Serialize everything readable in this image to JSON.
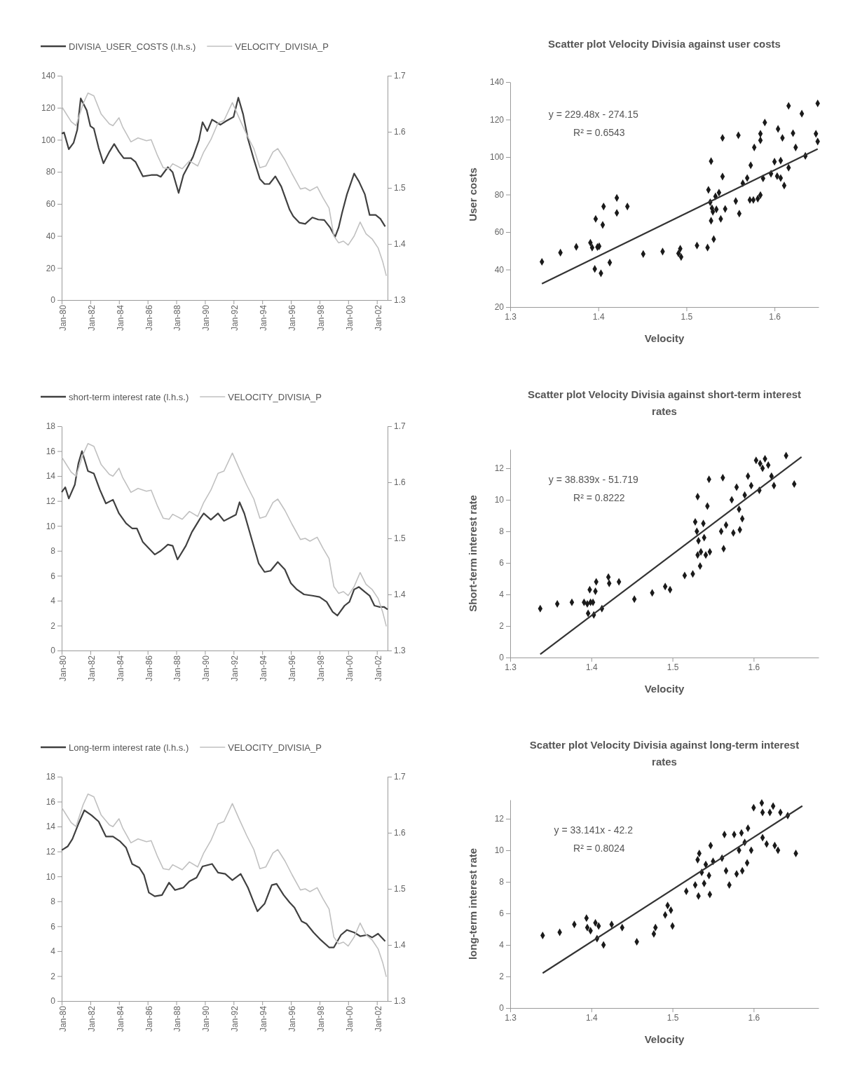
{
  "chart_data": [
    {
      "type": "line",
      "legend": "top",
      "xlim": [
        "1980-01",
        "2002-10"
      ],
      "xticks": [
        {
          "value": "1980-01",
          "label": "Jan-80"
        },
        {
          "value": "1982-01",
          "label": "Jan-82"
        },
        {
          "value": "1984-01",
          "label": "Jan-84"
        },
        {
          "value": "1986-01",
          "label": "Jan-86"
        },
        {
          "value": "1988-01",
          "label": "Jan-88"
        },
        {
          "value": "1990-01",
          "label": "Jan-90"
        },
        {
          "value": "1992-01",
          "label": "Jan-92"
        },
        {
          "value": "1994-01",
          "label": "Jan-94"
        },
        {
          "value": "1996-01",
          "label": "Jan-96"
        },
        {
          "value": "1998-01",
          "label": "Jan-98"
        },
        {
          "value": "2000-01",
          "label": "Jan-00"
        },
        {
          "value": "2002-01",
          "label": "Jan-02"
        }
      ],
      "ylim": [
        0,
        140
      ],
      "yticks": [
        0,
        20,
        40,
        60,
        80,
        100,
        120,
        140
      ],
      "y2lim": [
        1.3,
        1.7
      ],
      "y2ticks": [
        1.3,
        1.4,
        1.5,
        1.6,
        1.7
      ],
      "series": [
        {
          "name": "DIVISIA_USER_COSTS (l.h.s.)",
          "color": "#404040",
          "x": [
            "1980-01",
            "1980-03",
            "1980-07",
            "1980-11",
            "1981-02",
            "1981-05",
            "1981-10",
            "1982-01",
            "1982-04",
            "1982-08",
            "1982-12",
            "1983-05",
            "1983-09",
            "1984-01",
            "1984-05",
            "1984-11",
            "1985-03",
            "1985-09",
            "1986-04",
            "1986-09",
            "1986-12",
            "1987-06",
            "1987-10",
            "1988-03",
            "1988-07",
            "1988-11",
            "1989-03",
            "1989-08",
            "1989-11",
            "1990-03",
            "1990-07",
            "1991-02",
            "1991-07",
            "1992-01",
            "1992-05",
            "1992-09",
            "1993-01",
            "1993-06",
            "1993-11",
            "1994-03",
            "1994-07",
            "1994-12",
            "1995-05",
            "1995-12",
            "1996-03",
            "1996-08",
            "1997-01",
            "1997-07",
            "1997-12",
            "1998-05",
            "1998-10",
            "1999-02",
            "1999-05",
            "1999-08",
            "1999-12",
            "2000-06",
            "2000-10",
            "2001-03",
            "2001-07",
            "2001-12",
            "2002-04",
            "2002-08"
          ],
          "values": [
            103.8,
            104.6,
            94.1,
            98.2,
            106.2,
            125.8,
            118.3,
            108.6,
            107.0,
            94.9,
            85.3,
            92.5,
            97.4,
            92.5,
            88.5,
            88.5,
            86.1,
            77.2,
            78.0,
            78.0,
            76.9,
            82.9,
            79.7,
            66.8,
            78.0,
            83.7,
            89.3,
            99.8,
            111.0,
            105.4,
            112.6,
            109.4,
            111.8,
            114.3,
            126.3,
            115.9,
            100.6,
            87.7,
            75.6,
            72.4,
            72.4,
            77.2,
            70.8,
            56.3,
            52.3,
            48.3,
            47.5,
            51.5,
            50.2,
            49.9,
            45.1,
            39.4,
            45.1,
            54.7,
            66.0,
            78.9,
            74.0,
            66.0,
            53.1,
            53.1,
            50.7,
            45.9
          ]
        },
        {
          "name": "VELOCITY_DIVISIA_P",
          "color": "#c0c0c0",
          "axis": "y2",
          "x": [
            "1980-01",
            "1980-09",
            "1981-01",
            "1981-07",
            "1981-11",
            "1982-04",
            "1982-10",
            "1983-05",
            "1983-08",
            "1984-01",
            "1984-04",
            "1984-11",
            "1985-05",
            "1985-12",
            "1986-04",
            "1986-09",
            "1987-02",
            "1987-07",
            "1987-10",
            "1988-06",
            "1988-12",
            "1989-07",
            "1989-12",
            "1990-06",
            "1990-12",
            "1991-05",
            "1991-12",
            "1992-06",
            "1992-12",
            "1993-06",
            "1993-11",
            "1994-04",
            "1994-10",
            "1995-02",
            "1995-08",
            "1996-02",
            "1996-09",
            "1997-01",
            "1997-05",
            "1997-11",
            "1998-04",
            "1998-09",
            "1999-01",
            "1999-05",
            "1999-09",
            "2000-01",
            "2000-06",
            "2000-11",
            "2001-04",
            "2001-09",
            "2002-02",
            "2002-06",
            "2002-09"
          ],
          "values": [
            1.645,
            1.618,
            1.611,
            1.65,
            1.669,
            1.664,
            1.632,
            1.614,
            1.611,
            1.625,
            1.609,
            1.582,
            1.589,
            1.584,
            1.586,
            1.559,
            1.536,
            1.534,
            1.543,
            1.534,
            1.548,
            1.539,
            1.564,
            1.586,
            1.616,
            1.62,
            1.652,
            1.623,
            1.595,
            1.57,
            1.536,
            1.539,
            1.564,
            1.57,
            1.55,
            1.525,
            1.498,
            1.5,
            1.495,
            1.502,
            1.482,
            1.464,
            1.414,
            1.402,
            1.405,
            1.398,
            1.414,
            1.439,
            1.418,
            1.409,
            1.393,
            1.368,
            1.343
          ]
        }
      ]
    },
    {
      "type": "scatter",
      "title": "Scatter plot Velocity Divisia against user costs",
      "xlabel": "Velocity",
      "ylabel": "User costs",
      "marker": "diamond",
      "xlim": [
        1.3,
        1.65
      ],
      "xticks": [
        1.3,
        1.4,
        1.5,
        1.6
      ],
      "ylim": [
        20,
        140
      ],
      "yticks": [
        20,
        40,
        60,
        80,
        100,
        120,
        140
      ],
      "annotations": [
        "y = 229.48x - 274.15",
        "R² = 0.6543"
      ],
      "series": [
        {
          "color": "#1a1a1a",
          "x": [
            1.336,
            1.357,
            1.375,
            1.391,
            1.393,
            1.399,
            1.401,
            1.397,
            1.405,
            1.406,
            1.421,
            1.421,
            1.433,
            1.396,
            1.403,
            1.413,
            1.451,
            1.473,
            1.491,
            1.494,
            1.493,
            1.512,
            1.524,
            1.531,
            1.525,
            1.528,
            1.527,
            1.529,
            1.53,
            1.528,
            1.533,
            1.537,
            1.539,
            1.534,
            1.541,
            1.541,
            1.544,
            1.559,
            1.556,
            1.56,
            1.564,
            1.569,
            1.573,
            1.576,
            1.581,
            1.577,
            1.584,
            1.584,
            1.589,
            1.587,
            1.584,
            1.596,
            1.6,
            1.604,
            1.609,
            1.603,
            1.607,
            1.611,
            1.616,
            1.616,
            1.621,
            1.624,
            1.631,
            1.635,
            1.647,
            1.649,
            1.649,
            1.607,
            1.572
          ],
          "values": [
            44.1,
            49.0,
            52.1,
            54.3,
            51.7,
            52.0,
            52.4,
            67.0,
            63.8,
            73.6,
            78.2,
            70.2,
            73.6,
            40.3,
            38.0,
            43.7,
            48.3,
            49.6,
            48.6,
            46.7,
            51.1,
            52.8,
            51.7,
            56.2,
            82.5,
            97.8,
            75.9,
            72.7,
            70.8,
            66.0,
            79.0,
            81.0,
            67.0,
            72.1,
            89.6,
            110.2,
            72.3,
            111.6,
            76.5,
            69.8,
            86.0,
            88.8,
            95.6,
            77.1,
            77.8,
            105.1,
            108.9,
            112.4,
            118.4,
            88.6,
            79.7,
            91.1,
            97.5,
            115.0,
            110.2,
            89.8,
            98.1,
            84.8,
            127.3,
            94.3,
            112.7,
            105.1,
            123.1,
            100.6,
            112.4,
            128.6,
            108.3,
            88.8,
            77.1
          ]
        },
        {
          "type": "line",
          "marker": "none",
          "color": "#333333",
          "x": [
            1.336,
            1.649
          ],
          "values": [
            32.4,
            104.3
          ]
        }
      ]
    },
    {
      "type": "line",
      "legend": "top",
      "xlim": [
        "1980-01",
        "2002-10"
      ],
      "xticks": [
        {
          "value": "1980-01",
          "label": "Jan-80"
        },
        {
          "value": "1982-01",
          "label": "Jan-82"
        },
        {
          "value": "1984-01",
          "label": "Jan-84"
        },
        {
          "value": "1986-01",
          "label": "Jan-86"
        },
        {
          "value": "1988-01",
          "label": "Jan-88"
        },
        {
          "value": "1990-01",
          "label": "Jan-90"
        },
        {
          "value": "1992-01",
          "label": "Jan-92"
        },
        {
          "value": "1994-01",
          "label": "Jan-94"
        },
        {
          "value": "1996-01",
          "label": "Jan-96"
        },
        {
          "value": "1998-01",
          "label": "Jan-98"
        },
        {
          "value": "2000-01",
          "label": "Jan-00"
        },
        {
          "value": "2002-01",
          "label": "Jan-02"
        }
      ],
      "ylim": [
        0,
        18
      ],
      "yticks": [
        0,
        2,
        4,
        6,
        8,
        10,
        12,
        14,
        16,
        18
      ],
      "y2lim": [
        1.3,
        1.7
      ],
      "y2ticks": [
        1.3,
        1.4,
        1.5,
        1.6,
        1.7
      ],
      "series": [
        {
          "name": "short-term interest rate (l.h.s.)",
          "color": "#404040",
          "x": [
            "1980-01",
            "1980-04",
            "1980-07",
            "1980-12",
            "1981-03",
            "1981-06",
            "1981-11",
            "1982-04",
            "1982-09",
            "1983-02",
            "1983-08",
            "1984-01",
            "1984-07",
            "1984-12",
            "1985-04",
            "1985-09",
            "1986-02",
            "1986-07",
            "1986-12",
            "1987-06",
            "1987-10",
            "1988-02",
            "1988-09",
            "1989-02",
            "1989-09",
            "1989-12",
            "1990-06",
            "1990-12",
            "1991-05",
            "1991-11",
            "1992-03",
            "1992-06",
            "1992-10",
            "1993-04",
            "1993-10",
            "1994-03",
            "1994-08",
            "1995-02",
            "1995-08",
            "1996-01",
            "1996-06",
            "1996-12",
            "1997-07",
            "1998-01",
            "1998-07",
            "1998-12",
            "1999-04",
            "1999-10",
            "2000-02",
            "2000-06",
            "2000-10",
            "2001-03",
            "2001-07",
            "2001-11",
            "2002-03",
            "2002-07",
            "2002-10"
          ],
          "values": [
            12.7,
            13.1,
            12.2,
            13.3,
            15.0,
            16.0,
            14.4,
            14.2,
            12.9,
            11.8,
            12.1,
            11.0,
            10.2,
            9.8,
            9.8,
            8.7,
            8.2,
            7.7,
            8.0,
            8.5,
            8.4,
            7.3,
            8.4,
            9.5,
            10.6,
            11.0,
            10.5,
            11.0,
            10.4,
            10.7,
            10.9,
            11.9,
            11.0,
            9.0,
            7.0,
            6.3,
            6.4,
            7.1,
            6.5,
            5.4,
            4.9,
            4.5,
            4.4,
            4.3,
            3.9,
            3.1,
            2.8,
            3.6,
            3.9,
            4.9,
            5.1,
            4.7,
            4.4,
            3.6,
            3.5,
            3.5,
            3.3
          ]
        },
        {
          "name": "VELOCITY_DIVISIA_P",
          "color": "#c0c0c0",
          "axis": "y2",
          "x": [
            "1980-01",
            "1980-09",
            "1981-01",
            "1981-07",
            "1981-11",
            "1982-04",
            "1982-10",
            "1983-05",
            "1983-08",
            "1984-01",
            "1984-04",
            "1984-11",
            "1985-05",
            "1985-12",
            "1986-04",
            "1986-09",
            "1987-02",
            "1987-07",
            "1987-10",
            "1988-06",
            "1988-12",
            "1989-07",
            "1989-12",
            "1990-06",
            "1990-12",
            "1991-05",
            "1991-12",
            "1992-06",
            "1992-12",
            "1993-06",
            "1993-11",
            "1994-04",
            "1994-10",
            "1995-02",
            "1995-08",
            "1996-02",
            "1996-09",
            "1997-01",
            "1997-05",
            "1997-11",
            "1998-04",
            "1998-09",
            "1999-01",
            "1999-05",
            "1999-09",
            "2000-01",
            "2000-06",
            "2000-11",
            "2001-04",
            "2001-09",
            "2002-02",
            "2002-06",
            "2002-09"
          ],
          "values": [
            1.645,
            1.618,
            1.611,
            1.65,
            1.669,
            1.664,
            1.632,
            1.614,
            1.611,
            1.625,
            1.609,
            1.582,
            1.589,
            1.584,
            1.586,
            1.559,
            1.536,
            1.534,
            1.543,
            1.534,
            1.548,
            1.539,
            1.564,
            1.586,
            1.616,
            1.62,
            1.652,
            1.623,
            1.595,
            1.57,
            1.536,
            1.539,
            1.564,
            1.57,
            1.55,
            1.525,
            1.498,
            1.5,
            1.495,
            1.502,
            1.482,
            1.464,
            1.414,
            1.402,
            1.405,
            1.398,
            1.414,
            1.439,
            1.418,
            1.409,
            1.393,
            1.368,
            1.343
          ]
        }
      ]
    },
    {
      "type": "scatter",
      "title": "Scatter plot Velocity Divisia against short-term interest rates",
      "xlabel": "Velocity",
      "ylabel": "Short-term interest rate",
      "marker": "diamond",
      "xlim": [
        1.3,
        1.68
      ],
      "xticks": [
        1.3,
        1.4,
        1.5,
        1.6
      ],
      "ylim": [
        0,
        13.2
      ],
      "yticks": [
        0,
        2,
        4,
        6,
        8,
        10,
        12
      ],
      "annotations": [
        "y = 38.839x - 51.719",
        "R² = 0.8222"
      ],
      "series": [
        {
          "color": "#1a1a1a",
          "x": [
            1.337,
            1.358,
            1.376,
            1.391,
            1.395,
            1.399,
            1.402,
            1.396,
            1.403,
            1.413,
            1.398,
            1.406,
            1.405,
            1.421,
            1.422,
            1.434,
            1.453,
            1.475,
            1.491,
            1.497,
            1.515,
            1.525,
            1.534,
            1.531,
            1.528,
            1.53,
            1.532,
            1.531,
            1.535,
            1.538,
            1.539,
            1.541,
            1.545,
            1.543,
            1.546,
            1.562,
            1.56,
            1.563,
            1.566,
            1.573,
            1.575,
            1.579,
            1.582,
            1.583,
            1.586,
            1.589,
            1.593,
            1.597,
            1.603,
            1.607,
            1.611,
            1.614,
            1.618,
            1.622,
            1.625,
            1.64,
            1.65,
            1.608
          ],
          "values": [
            3.1,
            3.4,
            3.5,
            3.5,
            3.4,
            3.5,
            3.5,
            2.8,
            2.7,
            3.1,
            4.3,
            4.8,
            4.2,
            5.1,
            4.7,
            4.8,
            3.7,
            4.1,
            4.5,
            4.3,
            5.2,
            5.3,
            5.8,
            10.2,
            8.6,
            8.0,
            7.4,
            6.5,
            6.7,
            8.5,
            7.6,
            6.5,
            11.3,
            9.6,
            6.7,
            11.4,
            8.0,
            6.9,
            8.4,
            10.0,
            7.9,
            10.8,
            9.4,
            8.1,
            8.8,
            10.3,
            11.5,
            10.9,
            12.5,
            10.6,
            12.0,
            12.6,
            12.2,
            11.5,
            10.9,
            12.8,
            11.0,
            12.3
          ]
        },
        {
          "type": "line",
          "marker": "none",
          "color": "#333333",
          "x": [
            1.337,
            1.659
          ],
          "values": [
            0.21,
            12.72
          ]
        }
      ]
    },
    {
      "type": "line",
      "legend": "top",
      "xlim": [
        "1980-01",
        "2002-10"
      ],
      "xticks": [
        {
          "value": "1980-01",
          "label": "Jan-80"
        },
        {
          "value": "1982-01",
          "label": "Jan-82"
        },
        {
          "value": "1984-01",
          "label": "Jan-84"
        },
        {
          "value": "1986-01",
          "label": "Jan-86"
        },
        {
          "value": "1988-01",
          "label": "Jan-88"
        },
        {
          "value": "1990-01",
          "label": "Jan-90"
        },
        {
          "value": "1992-01",
          "label": "Jan-92"
        },
        {
          "value": "1994-01",
          "label": "Jan-94"
        },
        {
          "value": "1996-01",
          "label": "Jan-96"
        },
        {
          "value": "1998-01",
          "label": "Jan-98"
        },
        {
          "value": "2000-01",
          "label": "Jan-00"
        },
        {
          "value": "2002-01",
          "label": "Jan-02"
        }
      ],
      "ylim": [
        0,
        18
      ],
      "yticks": [
        0,
        2,
        4,
        6,
        8,
        10,
        12,
        14,
        16,
        18
      ],
      "y2lim": [
        1.3,
        1.7
      ],
      "y2ticks": [
        1.3,
        1.4,
        1.5,
        1.6,
        1.7
      ],
      "series": [
        {
          "name": "Long-term interest rate (l.h.s.)",
          "color": "#404040",
          "x": [
            "1980-01",
            "1980-06",
            "1980-10",
            "1981-03",
            "1981-08",
            "1982-02",
            "1982-08",
            "1983-02",
            "1983-08",
            "1984-02",
            "1984-07",
            "1984-12",
            "1985-06",
            "1985-10",
            "1986-02",
            "1986-07",
            "1987-01",
            "1987-07",
            "1987-12",
            "1988-07",
            "1988-12",
            "1989-06",
            "1989-11",
            "1990-07",
            "1990-12",
            "1991-06",
            "1991-12",
            "1992-07",
            "1993-01",
            "1993-06",
            "1993-09",
            "1994-03",
            "1994-09",
            "1995-01",
            "1995-07",
            "1995-12",
            "1996-04",
            "1996-10",
            "1997-02",
            "1997-08",
            "1998-02",
            "1998-09",
            "1999-01",
            "1999-07",
            "1999-12",
            "2000-06",
            "2000-11",
            "2001-05",
            "2001-09",
            "2002-02",
            "2002-08"
          ],
          "values": [
            12.1,
            12.4,
            13.0,
            14.2,
            15.3,
            14.9,
            14.4,
            13.2,
            13.2,
            12.8,
            12.3,
            11.0,
            10.7,
            10.1,
            8.7,
            8.4,
            8.5,
            9.5,
            8.9,
            9.1,
            9.6,
            9.9,
            10.8,
            11.0,
            10.3,
            10.2,
            9.7,
            10.2,
            9.1,
            7.9,
            7.2,
            7.8,
            9.3,
            9.4,
            8.5,
            7.9,
            7.5,
            6.4,
            6.2,
            5.5,
            4.9,
            4.3,
            4.3,
            5.3,
            5.7,
            5.5,
            5.2,
            5.3,
            5.1,
            5.4,
            4.8
          ]
        },
        {
          "name": "VELOCITY_DIVISIA_P",
          "color": "#c0c0c0",
          "axis": "y2",
          "x": [
            "1980-01",
            "1980-09",
            "1981-01",
            "1981-07",
            "1981-11",
            "1982-04",
            "1982-10",
            "1983-05",
            "1983-08",
            "1984-01",
            "1984-04",
            "1984-11",
            "1985-05",
            "1985-12",
            "1986-04",
            "1986-09",
            "1987-02",
            "1987-07",
            "1987-10",
            "1988-06",
            "1988-12",
            "1989-07",
            "1989-12",
            "1990-06",
            "1990-12",
            "1991-05",
            "1991-12",
            "1992-06",
            "1992-12",
            "1993-06",
            "1993-11",
            "1994-04",
            "1994-10",
            "1995-02",
            "1995-08",
            "1996-02",
            "1996-09",
            "1997-01",
            "1997-05",
            "1997-11",
            "1998-04",
            "1998-09",
            "1999-01",
            "1999-05",
            "1999-09",
            "2000-01",
            "2000-06",
            "2000-11",
            "2001-04",
            "2001-09",
            "2002-02",
            "2002-06",
            "2002-09"
          ],
          "values": [
            1.645,
            1.618,
            1.611,
            1.65,
            1.669,
            1.664,
            1.632,
            1.614,
            1.611,
            1.625,
            1.609,
            1.582,
            1.589,
            1.584,
            1.586,
            1.559,
            1.536,
            1.534,
            1.543,
            1.534,
            1.548,
            1.539,
            1.564,
            1.586,
            1.616,
            1.62,
            1.652,
            1.623,
            1.595,
            1.57,
            1.536,
            1.539,
            1.564,
            1.57,
            1.55,
            1.525,
            1.498,
            1.5,
            1.495,
            1.502,
            1.482,
            1.464,
            1.414,
            1.402,
            1.405,
            1.398,
            1.414,
            1.439,
            1.418,
            1.409,
            1.393,
            1.368,
            1.343
          ]
        }
      ]
    },
    {
      "type": "scatter",
      "title": "Scatter plot Velocity Divisia against long-term interest rates",
      "xlabel": "Velocity",
      "ylabel": "long-term interest rate",
      "marker": "diamond",
      "xlim": [
        1.3,
        1.68
      ],
      "xticks": [
        1.3,
        1.4,
        1.5,
        1.6
      ],
      "ylim": [
        0,
        13.2
      ],
      "yticks": [
        0,
        2,
        4,
        6,
        8,
        10,
        12
      ],
      "annotations": [
        "y = 33.141x - 42.2",
        "R² = 0.8024"
      ],
      "series": [
        {
          "color": "#1a1a1a",
          "x": [
            1.34,
            1.361,
            1.379,
            1.394,
            1.395,
            1.399,
            1.405,
            1.409,
            1.407,
            1.415,
            1.425,
            1.438,
            1.456,
            1.477,
            1.479,
            1.491,
            1.494,
            1.498,
            1.5,
            1.517,
            1.528,
            1.532,
            1.531,
            1.533,
            1.536,
            1.539,
            1.541,
            1.545,
            1.547,
            1.546,
            1.55,
            1.561,
            1.564,
            1.566,
            1.57,
            1.576,
            1.579,
            1.582,
            1.585,
            1.586,
            1.589,
            1.592,
            1.593,
            1.597,
            1.6,
            1.61,
            1.611,
            1.611,
            1.616,
            1.62,
            1.624,
            1.626,
            1.63,
            1.633,
            1.642,
            1.652
          ],
          "values": [
            4.6,
            4.8,
            5.3,
            5.7,
            5.1,
            4.9,
            5.4,
            5.2,
            4.4,
            4.0,
            5.3,
            5.1,
            4.2,
            4.7,
            5.1,
            5.9,
            6.5,
            6.2,
            5.2,
            7.4,
            7.8,
            7.1,
            9.4,
            9.8,
            8.6,
            7.9,
            9.1,
            8.4,
            10.3,
            7.2,
            9.3,
            9.5,
            11.0,
            8.7,
            7.8,
            11.0,
            8.5,
            10.0,
            11.1,
            8.7,
            10.5,
            9.2,
            11.4,
            10.0,
            12.7,
            13.0,
            12.4,
            10.8,
            10.4,
            12.4,
            12.8,
            10.3,
            10.0,
            12.4,
            12.2,
            9.8
          ]
        },
        {
          "type": "line",
          "marker": "none",
          "color": "#333333",
          "x": [
            1.34,
            1.66
          ],
          "values": [
            2.21,
            12.81
          ]
        }
      ]
    }
  ]
}
